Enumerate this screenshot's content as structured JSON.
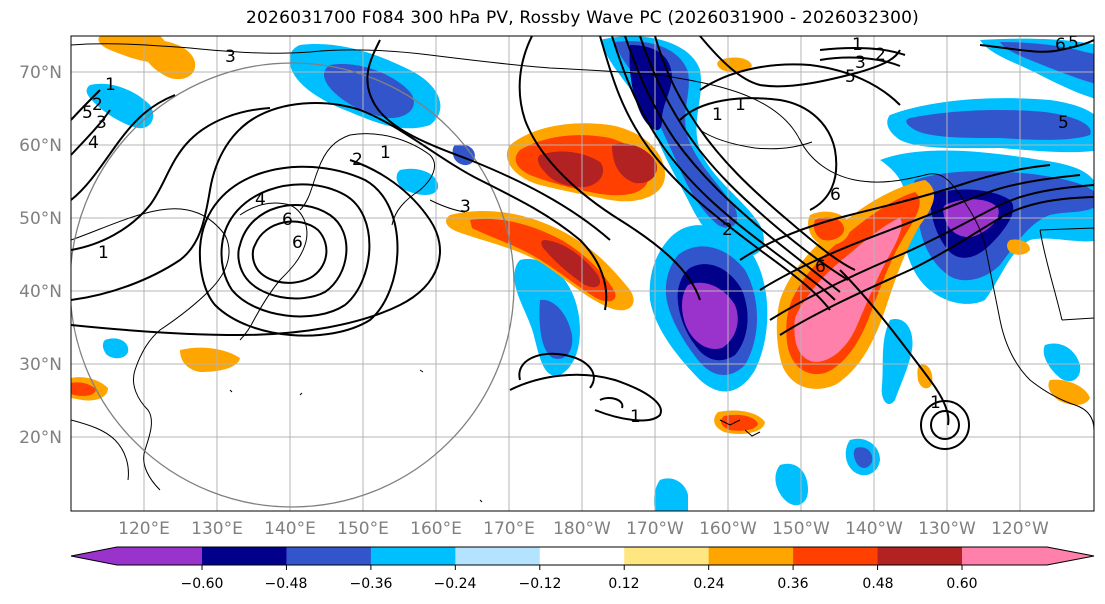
{
  "title": "2026031700 F084 300 hPa PV, Rossby Wave PC (2026031900 - 2026032300)",
  "map": {
    "lat_ticks": [
      "70°N",
      "60°N",
      "50°N",
      "40°N",
      "30°N",
      "20°N"
    ],
    "lon_ticks": [
      "120°E",
      "130°E",
      "140°E",
      "150°E",
      "160°E",
      "170°E",
      "180°W",
      "170°W",
      "160°W",
      "150°W",
      "140°W",
      "130°W",
      "120°W"
    ],
    "contour_labels": [
      "1",
      "2",
      "3",
      "4",
      "5",
      "6",
      "1",
      "2",
      "3",
      "4",
      "6",
      "3",
      "1",
      "6",
      "1",
      "1",
      "2",
      "3",
      "5",
      "5",
      "6",
      "1",
      "2",
      "5",
      "1",
      "1",
      "6"
    ]
  },
  "colorbar": {
    "tick_labels": [
      "−0.60",
      "−0.48",
      "−0.36",
      "−0.24",
      "−0.12",
      "0.12",
      "0.24",
      "0.36",
      "0.48",
      "0.60"
    ],
    "colors": [
      "#9933cc",
      "#00008b",
      "#3355cc",
      "#00bfff",
      "#b3e3ff",
      "#ffffff",
      "#ffe680",
      "#ffa500",
      "#ff4000",
      "#b22222",
      "#ff80aa"
    ]
  }
}
